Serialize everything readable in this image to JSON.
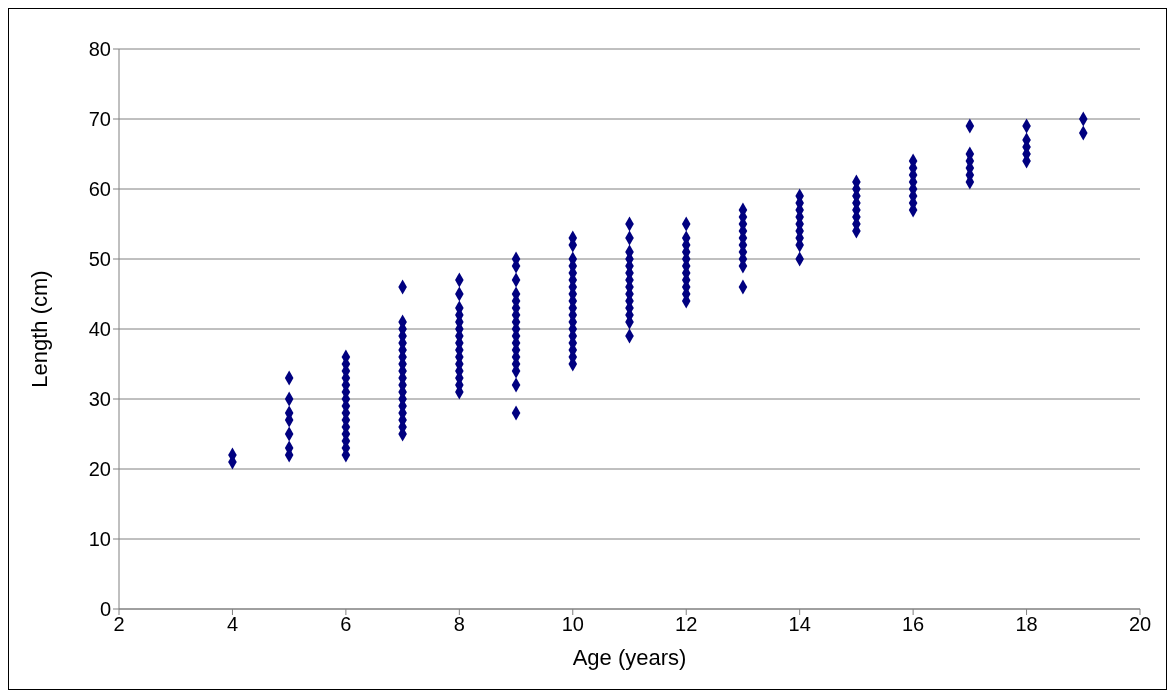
{
  "chart_data": {
    "type": "scatter",
    "xlabel": "Age (years)",
    "ylabel": "Length (cm)",
    "xlim": [
      2,
      20
    ],
    "xticks": [
      2,
      4,
      6,
      8,
      10,
      12,
      14,
      16,
      18,
      20
    ],
    "ylim": [
      0,
      80
    ],
    "yticks": [
      0,
      10,
      20,
      30,
      40,
      50,
      60,
      70,
      80
    ],
    "grid": "y",
    "marker": "diamond",
    "series": [
      {
        "color": "#000080",
        "x": [
          4,
          4,
          5,
          5,
          5,
          5,
          5,
          5,
          5,
          6,
          6,
          6,
          6,
          6,
          6,
          6,
          6,
          6,
          6,
          6,
          6,
          6,
          6,
          6,
          7,
          7,
          7,
          7,
          7,
          7,
          7,
          7,
          7,
          7,
          7,
          7,
          7,
          7,
          7,
          7,
          7,
          7,
          8,
          8,
          8,
          8,
          8,
          8,
          8,
          8,
          8,
          8,
          8,
          8,
          8,
          8,
          8,
          9,
          9,
          9,
          9,
          9,
          9,
          9,
          9,
          9,
          9,
          9,
          9,
          9,
          9,
          9,
          9,
          9,
          10,
          10,
          10,
          10,
          10,
          10,
          10,
          10,
          10,
          10,
          10,
          10,
          10,
          10,
          10,
          10,
          10,
          10,
          11,
          11,
          11,
          11,
          11,
          11,
          11,
          11,
          11,
          11,
          11,
          11,
          11,
          11,
          12,
          12,
          12,
          12,
          12,
          12,
          12,
          12,
          12,
          12,
          12,
          13,
          13,
          13,
          13,
          13,
          13,
          13,
          13,
          13,
          13,
          14,
          14,
          14,
          14,
          14,
          14,
          14,
          14,
          14,
          15,
          15,
          15,
          15,
          15,
          15,
          15,
          15,
          16,
          16,
          16,
          16,
          16,
          16,
          16,
          16,
          17,
          17,
          17,
          17,
          17,
          17,
          18,
          18,
          18,
          18,
          18,
          19,
          19
        ],
        "values": [
          21,
          22,
          22,
          23,
          25,
          27,
          28,
          30,
          33,
          22,
          23,
          24,
          25,
          26,
          27,
          28,
          29,
          30,
          31,
          32,
          33,
          34,
          35,
          36,
          25,
          26,
          27,
          28,
          29,
          30,
          31,
          32,
          33,
          34,
          35,
          36,
          37,
          38,
          39,
          40,
          41,
          46,
          31,
          32,
          33,
          34,
          35,
          36,
          37,
          38,
          39,
          40,
          41,
          42,
          43,
          45,
          47,
          28,
          32,
          34,
          35,
          36,
          37,
          38,
          39,
          40,
          41,
          42,
          43,
          44,
          45,
          47,
          49,
          50,
          35,
          36,
          37,
          38,
          39,
          40,
          41,
          42,
          43,
          44,
          45,
          46,
          47,
          48,
          49,
          50,
          52,
          53,
          39,
          41,
          42,
          43,
          44,
          45,
          46,
          47,
          48,
          49,
          50,
          51,
          53,
          55,
          44,
          45,
          46,
          47,
          48,
          49,
          50,
          51,
          52,
          53,
          55,
          46,
          49,
          50,
          51,
          52,
          53,
          54,
          55,
          56,
          57,
          50,
          52,
          53,
          54,
          55,
          56,
          57,
          58,
          59,
          54,
          55,
          56,
          57,
          58,
          59,
          60,
          61,
          57,
          58,
          59,
          60,
          61,
          62,
          63,
          64,
          61,
          62,
          63,
          64,
          65,
          69,
          64,
          65,
          66,
          67,
          69,
          68,
          70
        ]
      }
    ]
  }
}
